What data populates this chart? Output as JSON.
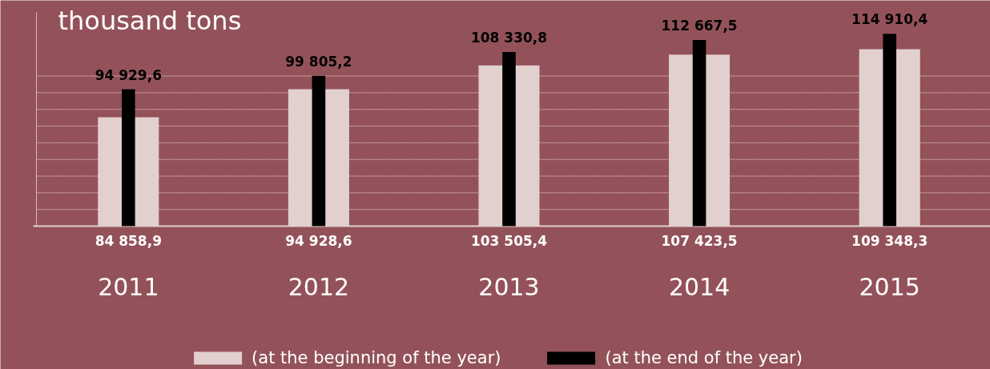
{
  "chart_data": {
    "type": "bar",
    "title": "thousand tons",
    "categories": [
      "2011",
      "2012",
      "2013",
      "2014",
      "2015"
    ],
    "series": [
      {
        "name": "(at the beginning of the year)",
        "color": "#e2d0cf",
        "values": [
          84858.9,
          94928.6,
          103505.4,
          107423.5,
          109348.3
        ],
        "value_labels": [
          "84 858,9",
          "94 928,6",
          "103 505,4",
          "107 423,5",
          "109 348,3"
        ]
      },
      {
        "name": "(at the end of the year)",
        "color": "#000000",
        "values": [
          94929.6,
          99805.2,
          108330.8,
          112667.5,
          114910.4
        ],
        "value_labels": [
          "94 929,6",
          "99 805,2",
          "108 330,8",
          "112 667,5",
          "114 910,4"
        ]
      }
    ],
    "ylim": [
      45700,
      122600
    ],
    "yticks": [
      {
        "value": 51700,
        "label": null
      },
      {
        "value": 57700,
        "label": null
      },
      {
        "value": 63700,
        "label": null
      },
      {
        "value": 69700,
        "label": null
      },
      {
        "value": 75700,
        "label": null
      },
      {
        "value": 81700,
        "label": null
      },
      {
        "value": 87700,
        "label": null
      },
      {
        "value": 93700,
        "label": null
      },
      {
        "value": 99700,
        "label": null
      }
    ],
    "grid": "y",
    "legend": "bottom",
    "tick_labels": "x"
  }
}
